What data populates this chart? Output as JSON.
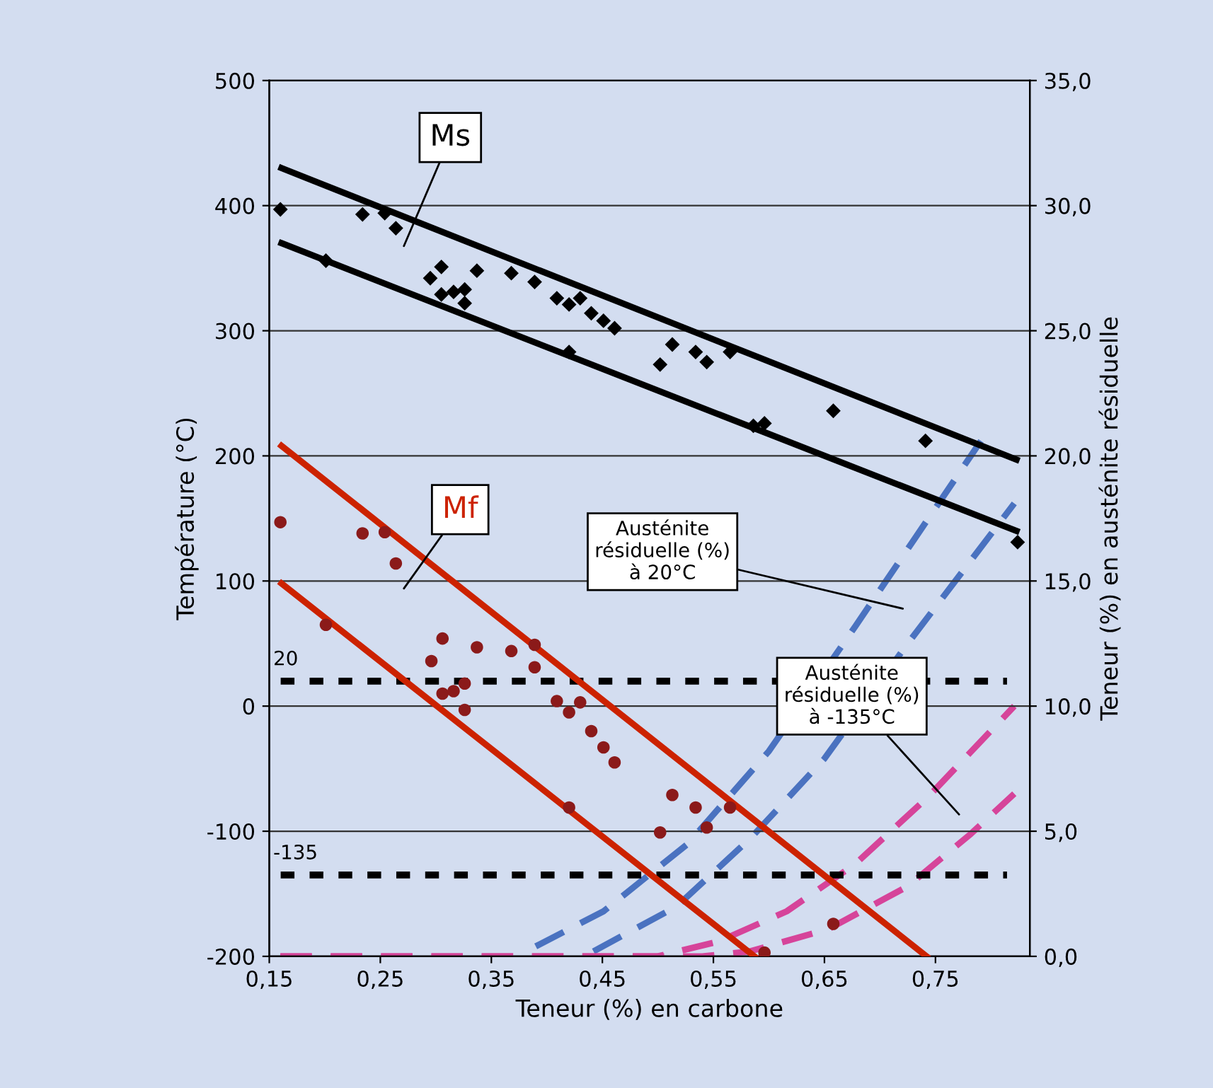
{
  "chart_data": {
    "type": "scatter",
    "xlabel": "Teneur (%) en carbone",
    "ylabel": "Température (°C)",
    "y2label": "Teneur (%) en austénite résiduelle",
    "xlim": [
      0.15,
      0.835
    ],
    "xticks": [
      {
        "value": 0.15,
        "label": "0,15"
      },
      {
        "value": 0.25,
        "label": "0,25"
      },
      {
        "value": 0.35,
        "label": "0,35"
      },
      {
        "value": 0.45,
        "label": "0,45"
      },
      {
        "value": 0.55,
        "label": "0,55"
      },
      {
        "value": 0.65,
        "label": "0,65"
      },
      {
        "value": 0.75,
        "label": "0,75"
      }
    ],
    "ylim": [
      -200,
      500
    ],
    "yticks": [
      {
        "value": -200,
        "label": "-200"
      },
      {
        "value": -100,
        "label": "-100"
      },
      0,
      100,
      200,
      300,
      400,
      500
    ],
    "y2lim": [
      0,
      35
    ],
    "y2ticks": [
      {
        "value": 0,
        "label": "0,0"
      },
      {
        "value": 5,
        "label": "5,0"
      },
      {
        "value": 10,
        "label": "10,0"
      },
      {
        "value": 15,
        "label": "15,0"
      },
      {
        "value": 20,
        "label": "20,0"
      },
      {
        "value": 25,
        "label": "25,0"
      },
      {
        "value": 30,
        "label": "30,0"
      },
      {
        "value": 35,
        "label": "35,0"
      }
    ],
    "grid": "y",
    "legend": false,
    "series": [
      {
        "marker": "diamond",
        "color": "#000000",
        "x": [
          0.16,
          0.234,
          0.254,
          0.264,
          0.201,
          0.295,
          0.305,
          0.305,
          0.316,
          0.326,
          0.326,
          0.337,
          0.368,
          0.389,
          0.409,
          0.42,
          0.43,
          0.44,
          0.451,
          0.461,
          0.42,
          0.502,
          0.513,
          0.534,
          0.544,
          0.565,
          0.586,
          0.596,
          0.658,
          0.741,
          0.824
        ],
        "values": [
          397,
          393,
          394,
          382,
          356,
          342,
          351,
          329,
          331,
          333,
          322,
          348,
          346,
          339,
          326,
          321,
          326,
          314,
          308,
          302,
          283,
          273,
          289,
          283,
          275,
          283,
          224,
          226,
          236,
          212,
          131
        ]
      },
      {
        "type": "line",
        "line_style": "solid",
        "color": "#000000",
        "x": [
          0.161,
          0.823
        ],
        "values": [
          430,
          197
        ]
      },
      {
        "type": "line",
        "line_style": "solid",
        "color": "#000000",
        "x": [
          0.161,
          0.823
        ],
        "values": [
          370,
          140
        ]
      },
      {
        "marker": "circle",
        "color": "#8b1a1a",
        "x": [
          0.16,
          0.234,
          0.254,
          0.264,
          0.201,
          0.296,
          0.306,
          0.306,
          0.316,
          0.326,
          0.326,
          0.337,
          0.368,
          0.389,
          0.389,
          0.409,
          0.42,
          0.43,
          0.44,
          0.451,
          0.461,
          0.42,
          0.502,
          0.513,
          0.534,
          0.544,
          0.565,
          0.596,
          0.658
        ],
        "values": [
          147,
          138,
          139,
          114,
          65,
          36,
          54,
          10,
          12,
          18,
          -3,
          47,
          44,
          49,
          31,
          4,
          -5,
          3,
          -20,
          -33,
          -45,
          -81,
          -101,
          -71,
          -81,
          -97,
          -81,
          -197,
          -174
        ]
      },
      {
        "type": "line",
        "line_style": "solid",
        "color": "#cc2200",
        "x": [
          0.161,
          0.742
        ],
        "values": [
          208,
          -200
        ]
      },
      {
        "type": "line",
        "line_style": "solid",
        "color": "#cc2200",
        "x": [
          0.161,
          0.587
        ],
        "values": [
          98,
          -200
        ]
      },
      {
        "type": "line",
        "axis": "y2",
        "line_style": "dashed",
        "color": "#4a72c0",
        "x": [
          0.39,
          0.451,
          0.527,
          0.6,
          0.678,
          0.791
        ],
        "values": [
          0.4,
          1.8,
          4.5,
          8.2,
          13.2,
          20.6
        ]
      },
      {
        "type": "line",
        "axis": "y2",
        "line_style": "dashed",
        "color": "#4a72c0",
        "x": [
          0.442,
          0.517,
          0.583,
          0.65,
          0.725,
          0.821
        ],
        "values": [
          0.2,
          2.0,
          4.7,
          7.9,
          12.5,
          18.1
        ]
      },
      {
        "type": "line",
        "axis": "y2",
        "line_style": "dashed",
        "color": "#d6449a",
        "x": [
          0.16,
          0.5,
          0.555,
          0.616,
          0.678,
          0.744,
          0.821
        ],
        "values": [
          0,
          0,
          0.6,
          1.8,
          3.7,
          6.4,
          10.0
        ]
      },
      {
        "type": "line",
        "axis": "y2",
        "line_style": "dashed",
        "color": "#d6449a",
        "x": [
          0.16,
          0.54,
          0.583,
          0.654,
          0.725,
          0.782,
          0.821
        ],
        "values": [
          0,
          0,
          0.2,
          1.1,
          2.8,
          4.9,
          6.5
        ]
      }
    ],
    "ref_lines": [
      {
        "axis": "y",
        "value": 20,
        "label": "20",
        "color": "#000000",
        "line_style": "dotted"
      },
      {
        "axis": "y",
        "value": -135,
        "label": "-135",
        "color": "#000000",
        "line_style": "dotted"
      }
    ],
    "annotations": [
      "Ms",
      "Mf",
      "Austénite\nrésiduelle (%)\nà 20°C",
      "Austénite\nrésiduelle (%)\nà -135°C"
    ]
  }
}
